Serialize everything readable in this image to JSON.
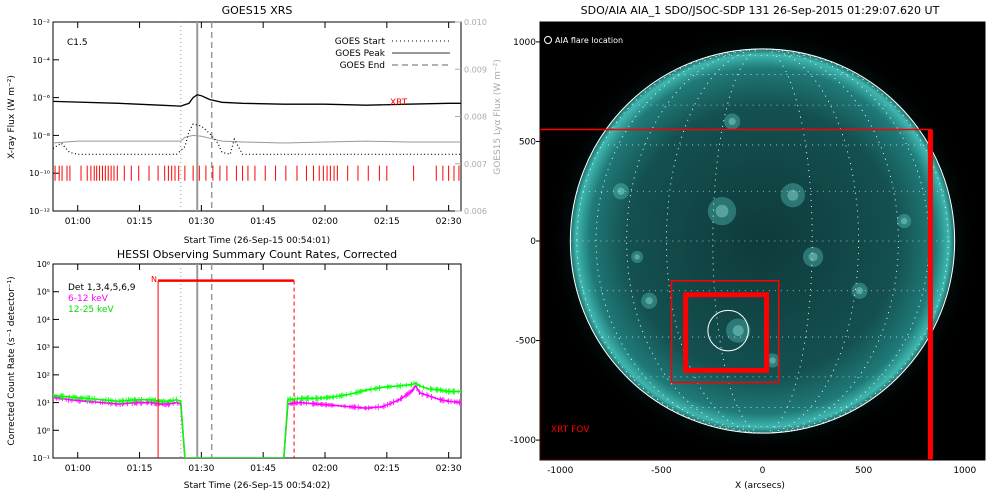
{
  "goes_panel": {
    "title": "GOES15 XRS",
    "ylabel_left": "X-ray Flux (W m⁻²)",
    "ylabel_right": "GOES15 Lyα Flux (W m⁻²)",
    "xlabel": "Start Time (26-Sep-15 00:54:01)",
    "class_label": "C1.5",
    "xrt_label": "XRT",
    "legend": [
      {
        "label": "GOES Start",
        "style": "dotted"
      },
      {
        "label": "GOES Peak",
        "style": "solid"
      },
      {
        "label": "GOES End",
        "style": "dashed"
      }
    ]
  },
  "hessi_panel": {
    "title": "HESSI Observing Summary Count Rates, Corrected",
    "ylabel": "Corrected Count Rate (s⁻¹ detector⁻¹)",
    "xlabel": "Start Time (26-Sep-15 00:54:02)",
    "n_label": "N",
    "legend": [
      {
        "label": "Det 1,3,4,5,6,9",
        "color": "#000000"
      },
      {
        "label": "6-12 keV",
        "color": "#ff00ff"
      },
      {
        "label": "12-25 keV",
        "color": "#00ff00"
      }
    ]
  },
  "aia_panel": {
    "title": "SDO/AIA AIA_1 SDO/JSOC-SDP 131 26-Sep-2015 01:29:07.620 UT",
    "xlabel": "X (arcsecs)",
    "flare_legend": "AIA flare location",
    "fov_label": "XRT FOV"
  },
  "chart_data": [
    {
      "type": "line",
      "id": "goes",
      "x_ticks": [
        "01:00",
        "01:15",
        "01:30",
        "01:45",
        "02:00",
        "02:15",
        "02:30"
      ],
      "x_tick_minutes": [
        60,
        75,
        90,
        105,
        120,
        135,
        150
      ],
      "xlim_minutes": [
        54,
        153
      ],
      "y_left_ticks": [
        "10⁻²",
        "10⁻⁴",
        "10⁻⁶",
        "10⁻⁸",
        "10⁻¹⁰",
        "10⁻¹²"
      ],
      "ylim_left_log10": [
        -12,
        -2
      ],
      "y_right_ticks": [
        "0.010",
        "0.009",
        "0.008",
        "0.007",
        "0.006"
      ],
      "ylim_right": [
        0.006,
        0.01
      ],
      "markers_minutes": {
        "start": 85,
        "peak": 89,
        "end": 92.5
      },
      "series": [
        {
          "name": "",
          "color": "#000000",
          "style": "solid",
          "axis": "left",
          "x": [
            54,
            70,
            80,
            85,
            87,
            88,
            89,
            90,
            91,
            92,
            95,
            100,
            110,
            120,
            130,
            140,
            150,
            153
          ],
          "y": [
            -6.2,
            -6.3,
            -6.4,
            -6.45,
            -6.3,
            -6.0,
            -5.85,
            -5.9,
            -6.0,
            -6.1,
            -6.25,
            -6.3,
            -6.35,
            -6.35,
            -6.4,
            -6.35,
            -6.3,
            -6.3
          ]
        },
        {
          "name": "",
          "color": "#999999",
          "style": "solid",
          "axis": "left",
          "x": [
            54,
            60,
            70,
            80,
            85,
            86,
            88,
            90,
            92,
            95,
            100,
            110,
            120,
            130,
            140,
            150,
            153
          ],
          "y": [
            -8.4,
            -8.3,
            -8.3,
            -8.3,
            -8.3,
            -8.1,
            -8.0,
            -8.05,
            -8.15,
            -8.3,
            -8.35,
            -8.4,
            -8.35,
            -8.3,
            -8.35,
            -8.35,
            -8.35
          ]
        },
        {
          "name": "",
          "color": "#000000",
          "style": "dotted",
          "axis": "left",
          "x": [
            54,
            56,
            58,
            60,
            62,
            65,
            70,
            75,
            80,
            84,
            86,
            87,
            88,
            90,
            92,
            94,
            95,
            97,
            98,
            100,
            105,
            110,
            120,
            130,
            140,
            150,
            153
          ],
          "y": [
            -8.7,
            -8.4,
            -8.9,
            -9.0,
            -9.0,
            -9.0,
            -9.0,
            -9.0,
            -9.0,
            -9.0,
            -8.6,
            -7.8,
            -7.4,
            -7.5,
            -7.9,
            -8.4,
            -8.9,
            -9.0,
            -8.2,
            -9.0,
            -9.0,
            -9.0,
            -9.0,
            -9.0,
            -9.0,
            -9.0,
            -9.0
          ]
        }
      ],
      "xrt_obs_minutes": [
        54.5,
        55.5,
        56.2,
        57.4,
        58.1,
        60.8,
        62.3,
        63.2,
        64,
        64.6,
        65.3,
        66,
        66.7,
        67.4,
        68.1,
        68.8,
        69.6,
        71.3,
        73,
        74.8,
        77.3,
        79.5,
        81.1,
        82,
        82.8,
        83.6,
        84.5,
        86,
        88,
        89.5,
        91.1,
        92.8,
        94.5,
        96.2,
        98.5,
        100,
        101.3,
        103,
        105.5,
        108,
        110.5,
        113.2,
        115.5,
        117.2,
        118.6,
        119.6,
        120.5,
        121.3,
        122.2,
        123,
        125.5,
        128,
        130.5,
        133.2,
        135,
        141.5,
        147,
        148.6,
        150,
        151.3,
        152.5
      ]
    },
    {
      "type": "line",
      "id": "hessi",
      "x_ticks": [
        "01:00",
        "01:15",
        "01:30",
        "01:45",
        "02:00",
        "02:15",
        "02:30"
      ],
      "x_tick_minutes": [
        60,
        75,
        90,
        105,
        120,
        135,
        150
      ],
      "xlim_minutes": [
        54,
        153
      ],
      "y_ticks": [
        "10⁶",
        "10⁵",
        "10⁴",
        "10³",
        "10²",
        "10¹",
        "10⁰",
        "10⁻¹"
      ],
      "ylim_log10": [
        -1,
        6
      ],
      "markers_minutes": {
        "start": 85,
        "peak": 89,
        "end": 92.5
      },
      "night_bar_minutes": [
        79.5,
        112.5
      ],
      "night_level_log10": 5.4,
      "series": [
        {
          "name": "6-12 keV",
          "color": "#ff00ff",
          "x": [
            54,
            58,
            62,
            66,
            70,
            74,
            78,
            80,
            82,
            84,
            85,
            86,
            110,
            111,
            114,
            118,
            122,
            126,
            130,
            134,
            138,
            141,
            142,
            143,
            145,
            148,
            150,
            153
          ],
          "y": [
            1.2,
            1.1,
            1.05,
            1.0,
            0.95,
            1.0,
            1.0,
            0.95,
            0.95,
            1.0,
            0.95,
            -1,
            -1,
            0.95,
            1.0,
            0.95,
            0.9,
            0.85,
            0.8,
            0.85,
            1.1,
            1.4,
            1.6,
            1.35,
            1.25,
            1.1,
            1.05,
            1.0
          ]
        },
        {
          "name": "12-25 keV",
          "color": "#00ff00",
          "x": [
            54,
            58,
            62,
            66,
            70,
            74,
            78,
            80,
            82,
            84,
            85,
            86,
            110,
            111,
            114,
            118,
            122,
            126,
            130,
            134,
            138,
            141,
            142,
            143,
            145,
            148,
            150,
            153
          ],
          "y": [
            1.25,
            1.2,
            1.15,
            1.1,
            1.05,
            1.1,
            1.1,
            1.05,
            1.05,
            1.1,
            1.05,
            -1,
            -1,
            1.1,
            1.15,
            1.15,
            1.2,
            1.3,
            1.45,
            1.55,
            1.6,
            1.65,
            1.7,
            1.6,
            1.5,
            1.45,
            1.4,
            1.4
          ]
        }
      ]
    },
    {
      "type": "scatter",
      "id": "aia",
      "x_ticks": [
        "-1000",
        "-500",
        "0",
        "500",
        "1000"
      ],
      "y_ticks": [
        "1000",
        "500",
        "0",
        "-500",
        "-1000"
      ],
      "xlim_arcsec": [
        -1100,
        1100
      ],
      "ylim_arcsec": [
        -1100,
        1100
      ],
      "solar_radius_arcsec": 950,
      "xrt_fov_arcsec": {
        "x": [
          -1100,
          830
        ],
        "y": [
          -1100,
          560
        ]
      },
      "outer_box_arcsec": {
        "x": [
          -450,
          80
        ],
        "y": [
          -710,
          -200
        ]
      },
      "inner_box_arcsec": {
        "x": [
          -380,
          20
        ],
        "y": [
          -650,
          -270
        ]
      },
      "flare_circle_arcsec": {
        "x": -170,
        "y": -450,
        "r": 100
      }
    }
  ]
}
